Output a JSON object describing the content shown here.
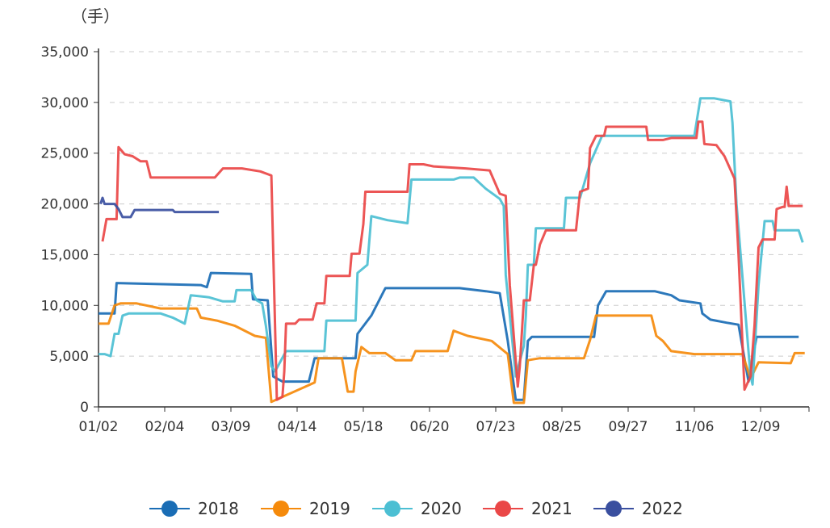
{
  "chart_data": {
    "type": "line",
    "ylabel": "（手）",
    "ylim": [
      0,
      35000
    ],
    "yticks": [
      0,
      5000,
      10000,
      15000,
      20000,
      25000,
      30000,
      35000
    ],
    "ytick_labels": [
      "0",
      "5,000",
      "10,000",
      "15,000",
      "20,000",
      "25,000",
      "30,000",
      "35,000"
    ],
    "xticks": [
      "01/02",
      "02/04",
      "03/09",
      "04/14",
      "05/18",
      "06/20",
      "07/23",
      "08/25",
      "09/27",
      "11/06",
      "12/09"
    ],
    "grid": "horizontal dashed",
    "legend": "bottom",
    "series": [
      {
        "name": "2018",
        "color": "#1a6db5",
        "points": [
          [
            "01/02",
            9200
          ],
          [
            "01/10",
            9200
          ],
          [
            "01/11",
            12200
          ],
          [
            "02/22",
            12000
          ],
          [
            "02/25",
            11800
          ],
          [
            "02/27",
            13200
          ],
          [
            "03/20",
            13100
          ],
          [
            "03/21",
            10600
          ],
          [
            "03/29",
            10500
          ],
          [
            "04/01",
            3000
          ],
          [
            "04/06",
            2500
          ],
          [
            "04/20",
            2500
          ],
          [
            "04/23",
            4800
          ],
          [
            "05/14",
            4800
          ],
          [
            "05/15",
            7200
          ],
          [
            "05/22",
            9000
          ],
          [
            "05/29",
            11700
          ],
          [
            "07/05",
            11700
          ],
          [
            "07/18",
            11400
          ],
          [
            "07/25",
            11200
          ],
          [
            "07/29",
            6500
          ],
          [
            "08/02",
            700
          ],
          [
            "08/06",
            700
          ],
          [
            "08/08",
            6500
          ],
          [
            "08/10",
            6900
          ],
          [
            "09/10",
            6900
          ],
          [
            "09/12",
            10000
          ],
          [
            "09/16",
            11400
          ],
          [
            "10/13",
            11400
          ],
          [
            "10/23",
            11000
          ],
          [
            "10/28",
            10500
          ],
          [
            "11/09",
            10200
          ],
          [
            "11/10",
            9200
          ],
          [
            "11/14",
            8600
          ],
          [
            "11/22",
            8300
          ],
          [
            "11/28",
            8100
          ],
          [
            "12/03",
            2500
          ],
          [
            "12/07",
            6900
          ],
          [
            "12/28",
            6900
          ]
        ]
      },
      {
        "name": "2019",
        "color": "#f58a0b",
        "points": [
          [
            "01/02",
            8200
          ],
          [
            "01/07",
            8200
          ],
          [
            "01/10",
            10000
          ],
          [
            "01/13",
            10200
          ],
          [
            "01/21",
            10200
          ],
          [
            "02/02",
            9700
          ],
          [
            "02/20",
            9700
          ],
          [
            "02/22",
            8800
          ],
          [
            "03/02",
            8500
          ],
          [
            "03/11",
            8000
          ],
          [
            "03/22",
            7000
          ],
          [
            "03/28",
            6800
          ],
          [
            "03/31",
            500
          ],
          [
            "04/23",
            2400
          ],
          [
            "04/25",
            4800
          ],
          [
            "05/07",
            4800
          ],
          [
            "05/10",
            1500
          ],
          [
            "05/13",
            1500
          ],
          [
            "05/14",
            3500
          ],
          [
            "05/17",
            5900
          ],
          [
            "05/21",
            5300
          ],
          [
            "05/29",
            5300
          ],
          [
            "06/03",
            4600
          ],
          [
            "06/11",
            4600
          ],
          [
            "06/13",
            5500
          ],
          [
            "06/29",
            5500
          ],
          [
            "07/02",
            7500
          ],
          [
            "07/09",
            7000
          ],
          [
            "07/21",
            6500
          ],
          [
            "07/29",
            5200
          ],
          [
            "08/01",
            400
          ],
          [
            "08/06",
            400
          ],
          [
            "08/08",
            4600
          ],
          [
            "08/14",
            4800
          ],
          [
            "09/05",
            4800
          ],
          [
            "09/08",
            6600
          ],
          [
            "09/11",
            9000
          ],
          [
            "10/11",
            9000
          ],
          [
            "10/14",
            7000
          ],
          [
            "10/18",
            6500
          ],
          [
            "10/23",
            5500
          ],
          [
            "11/06",
            5200
          ],
          [
            "11/30",
            5200
          ],
          [
            "12/04",
            2800
          ],
          [
            "12/08",
            4400
          ],
          [
            "12/24",
            4300
          ],
          [
            "12/26",
            5300
          ],
          [
            "12/31",
            5300
          ]
        ]
      },
      {
        "name": "2020",
        "color": "#4cbfd3",
        "points": [
          [
            "01/02",
            5200
          ],
          [
            "01/05",
            5200
          ],
          [
            "01/08",
            5000
          ],
          [
            "01/10",
            7200
          ],
          [
            "01/12",
            7200
          ],
          [
            "01/14",
            9000
          ],
          [
            "01/17",
            9200
          ],
          [
            "02/02",
            9200
          ],
          [
            "02/08",
            8800
          ],
          [
            "02/14",
            8200
          ],
          [
            "02/17",
            11000
          ],
          [
            "02/26",
            10800
          ],
          [
            "03/05",
            10400
          ],
          [
            "03/11",
            10400
          ],
          [
            "03/12",
            11500
          ],
          [
            "03/20",
            11500
          ],
          [
            "03/23",
            10500
          ],
          [
            "03/26",
            10200
          ],
          [
            "03/28",
            8000
          ],
          [
            "03/31",
            4000
          ],
          [
            "04/02",
            3500
          ],
          [
            "04/08",
            5500
          ],
          [
            "04/28",
            5500
          ],
          [
            "04/29",
            8500
          ],
          [
            "05/14",
            8500
          ],
          [
            "05/15",
            13200
          ],
          [
            "05/20",
            14000
          ],
          [
            "05/22",
            18800
          ],
          [
            "05/30",
            18400
          ],
          [
            "06/09",
            18100
          ],
          [
            "06/11",
            22400
          ],
          [
            "07/02",
            22400
          ],
          [
            "07/05",
            22600
          ],
          [
            "07/12",
            22600
          ],
          [
            "07/18",
            21500
          ],
          [
            "07/25",
            20500
          ],
          [
            "07/27",
            19800
          ],
          [
            "07/28",
            13000
          ],
          [
            "07/31",
            7000
          ],
          [
            "08/02",
            3000
          ],
          [
            "08/06",
            6000
          ],
          [
            "08/07",
            9000
          ],
          [
            "08/08",
            14000
          ],
          [
            "08/11",
            14000
          ],
          [
            "08/12",
            17600
          ],
          [
            "08/26",
            17600
          ],
          [
            "08/27",
            20600
          ],
          [
            "09/03",
            20600
          ],
          [
            "09/08",
            24000
          ],
          [
            "09/14",
            26700
          ],
          [
            "11/06",
            26700
          ],
          [
            "11/09",
            30400
          ],
          [
            "11/16",
            30400
          ],
          [
            "11/24",
            30100
          ],
          [
            "11/25",
            28000
          ],
          [
            "11/27",
            20000
          ],
          [
            "12/04",
            3000
          ],
          [
            "12/05",
            2200
          ],
          [
            "12/08",
            12000
          ],
          [
            "12/11",
            18300
          ],
          [
            "12/15",
            18300
          ],
          [
            "12/16",
            17400
          ],
          [
            "12/28",
            17400
          ],
          [
            "12/30",
            16200
          ]
        ]
      },
      {
        "name": "2021",
        "color": "#ea4747",
        "points": [
          [
            "01/04",
            16300
          ],
          [
            "01/06",
            18500
          ],
          [
            "01/11",
            18500
          ],
          [
            "01/12",
            25600
          ],
          [
            "01/15",
            24900
          ],
          [
            "01/19",
            24700
          ],
          [
            "01/23",
            24200
          ],
          [
            "01/26",
            24200
          ],
          [
            "01/28",
            22600
          ],
          [
            "03/01",
            22600
          ],
          [
            "03/05",
            23500
          ],
          [
            "03/15",
            23500
          ],
          [
            "03/25",
            23200
          ],
          [
            "03/31",
            22800
          ],
          [
            "04/03",
            700
          ],
          [
            "04/06",
            1000
          ],
          [
            "04/07",
            3500
          ],
          [
            "04/08",
            8200
          ],
          [
            "04/13",
            8200
          ],
          [
            "04/15",
            8600
          ],
          [
            "04/22",
            8600
          ],
          [
            "04/24",
            10200
          ],
          [
            "04/28",
            10200
          ],
          [
            "04/29",
            12900
          ],
          [
            "05/11",
            12900
          ],
          [
            "05/12",
            15100
          ],
          [
            "05/16",
            15100
          ],
          [
            "05/18",
            18000
          ],
          [
            "05/19",
            21200
          ],
          [
            "06/09",
            21200
          ],
          [
            "06/10",
            23900
          ],
          [
            "06/17",
            23900
          ],
          [
            "06/22",
            23700
          ],
          [
            "07/08",
            23500
          ],
          [
            "07/20",
            23300
          ],
          [
            "07/25",
            21000
          ],
          [
            "07/28",
            20800
          ],
          [
            "07/30",
            12000
          ],
          [
            "08/03",
            2000
          ],
          [
            "08/04",
            4000
          ],
          [
            "08/06",
            10500
          ],
          [
            "08/09",
            10500
          ],
          [
            "08/11",
            14000
          ],
          [
            "08/12",
            14000
          ],
          [
            "08/14",
            16000
          ],
          [
            "08/17",
            17400
          ],
          [
            "09/01",
            17400
          ],
          [
            "09/03",
            21200
          ],
          [
            "09/07",
            21500
          ],
          [
            "09/08",
            25500
          ],
          [
            "09/11",
            26700
          ],
          [
            "09/15",
            26700
          ],
          [
            "09/16",
            27600
          ],
          [
            "10/08",
            27600
          ],
          [
            "10/09",
            26300
          ],
          [
            "10/18",
            26300
          ],
          [
            "10/23",
            26500
          ],
          [
            "11/07",
            26500
          ],
          [
            "11/08",
            28100
          ],
          [
            "11/10",
            28100
          ],
          [
            "11/11",
            25900
          ],
          [
            "11/17",
            25800
          ],
          [
            "11/21",
            24700
          ],
          [
            "11/26",
            22500
          ],
          [
            "11/28",
            15000
          ],
          [
            "12/01",
            1700
          ],
          [
            "12/04",
            3000
          ],
          [
            "12/06",
            8000
          ],
          [
            "12/08",
            15700
          ],
          [
            "12/10",
            16500
          ],
          [
            "12/16",
            16500
          ],
          [
            "12/17",
            19500
          ],
          [
            "12/20",
            19700
          ],
          [
            "12/21",
            19700
          ],
          [
            "12/22",
            21700
          ],
          [
            "12/23",
            19800
          ],
          [
            "12/30",
            19800
          ]
        ]
      },
      {
        "name": "2022",
        "color": "#3a4f9f",
        "points": [
          [
            "01/03",
            20000
          ],
          [
            "01/04",
            20600
          ],
          [
            "01/05",
            20000
          ],
          [
            "01/10",
            20000
          ],
          [
            "01/12",
            19500
          ],
          [
            "01/14",
            18700
          ],
          [
            "01/18",
            18700
          ],
          [
            "01/20",
            19400
          ],
          [
            "02/08",
            19400
          ],
          [
            "02/09",
            19200
          ],
          [
            "03/03",
            19200
          ]
        ]
      }
    ]
  }
}
